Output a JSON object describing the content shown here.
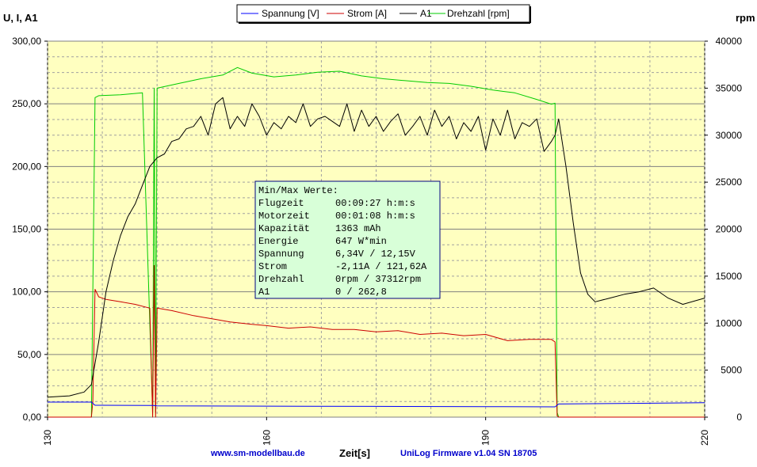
{
  "chart_data": {
    "type": "line",
    "y_left_label": "U, I, A1",
    "y_right_label": "rpm",
    "x_label": "Zeit[s]",
    "xlim": [
      130,
      220
    ],
    "ylim_left": [
      0,
      300
    ],
    "ylim_right": [
      0,
      40000
    ],
    "x_ticks": [
      "130",
      "160",
      "190",
      "220"
    ],
    "y_left_ticks": [
      "0,00",
      "50,00",
      "100,00",
      "150,00",
      "200,00",
      "250,00",
      "300,00"
    ],
    "y_right_ticks": [
      "0",
      "5000",
      "10000",
      "15000",
      "20000",
      "25000",
      "30000",
      "35000",
      "40000"
    ],
    "grid": true,
    "legend_position": "top",
    "series": [
      {
        "name": "Spannung [V]",
        "color": "#0000ff",
        "axis": "left",
        "x": [
          130,
          136,
          136.5,
          144.5,
          145,
          160,
          175,
          190,
          199.5,
          200,
          210,
          220
        ],
        "y": [
          12,
          12,
          9.5,
          9.3,
          9.0,
          8.8,
          8.6,
          8.4,
          8.2,
          10.5,
          11,
          11.5
        ]
      },
      {
        "name": "Strom [A]",
        "color": "#cc0000",
        "axis": "left",
        "x": [
          130,
          136,
          136.2,
          136.5,
          137,
          138,
          140,
          142,
          144,
          144.4,
          144.6,
          144.8,
          145,
          147,
          150,
          153,
          155,
          158,
          160,
          163,
          166,
          169,
          172,
          175,
          178,
          181,
          184,
          187,
          190,
          193,
          196,
          199,
          199.5,
          199.8,
          200,
          220
        ],
        "y": [
          0,
          0,
          12,
          102,
          96,
          94,
          92,
          90,
          87,
          0,
          121,
          0,
          87,
          85,
          81,
          78,
          76,
          74,
          73,
          71,
          72,
          70,
          70,
          68,
          69,
          66,
          67,
          65,
          66,
          61,
          62,
          62,
          60,
          1,
          0,
          0
        ]
      },
      {
        "name": "A1",
        "color": "#000000",
        "axis": "left",
        "x": [
          130,
          133,
          135,
          136,
          137,
          138,
          139,
          140,
          141,
          142,
          143,
          144,
          145,
          146,
          147,
          148,
          149,
          150,
          151,
          152,
          153,
          154,
          155,
          156,
          157,
          158,
          159,
          160,
          161,
          162,
          163,
          164,
          165,
          166,
          167,
          168,
          169,
          170,
          171,
          172,
          173,
          174,
          175,
          176,
          177,
          178,
          179,
          180,
          181,
          182,
          183,
          184,
          185,
          186,
          187,
          188,
          189,
          190,
          191,
          192,
          193,
          194,
          195,
          196,
          197,
          198,
          199,
          199.5,
          200,
          201,
          202,
          203,
          204,
          205,
          207,
          209,
          211,
          213,
          215,
          217,
          220
        ],
        "y": [
          16,
          17,
          20,
          26,
          60,
          100,
          125,
          145,
          160,
          170,
          185,
          200,
          207,
          210,
          220,
          222,
          230,
          232,
          240,
          225,
          250,
          255,
          230,
          240,
          232,
          250,
          240,
          225,
          235,
          230,
          240,
          235,
          250,
          232,
          238,
          240,
          236,
          232,
          250,
          228,
          245,
          232,
          240,
          228,
          236,
          242,
          225,
          232,
          240,
          225,
          245,
          232,
          240,
          222,
          235,
          228,
          240,
          213,
          238,
          225,
          245,
          222,
          235,
          232,
          238,
          212,
          220,
          225,
          238,
          200,
          155,
          115,
          98,
          92,
          95,
          98,
          100,
          103,
          95,
          90,
          95
        ]
      },
      {
        "name": "Drehzahl [rpm]",
        "color": "#00cc00",
        "axis": "right",
        "x": [
          130,
          136,
          136.5,
          137,
          140,
          143,
          144.4,
          144.6,
          144.8,
          145,
          148,
          151,
          154,
          156,
          158,
          161,
          164,
          167,
          170,
          173,
          176,
          179,
          182,
          185,
          188,
          191,
          194,
          197,
          199,
          199.5,
          199.8,
          200,
          220
        ],
        "y": [
          0,
          0,
          34000,
          34200,
          34300,
          34500,
          500,
          35000,
          500,
          35000,
          35500,
          36000,
          36400,
          37200,
          36600,
          36200,
          36400,
          36700,
          36800,
          36300,
          36000,
          35800,
          35600,
          35500,
          35200,
          34800,
          34500,
          33800,
          33300,
          33400,
          500,
          0,
          0
        ]
      }
    ],
    "annotations": {
      "min_max_box": [
        {
          "label": "Min/Max Werte:",
          "value": ""
        },
        {
          "label": "Flugzeit",
          "value": "00:09:27 h:m:s"
        },
        {
          "label": "Motorzeit",
          "value": "00:01:08 h:m:s"
        },
        {
          "label": "Kapazität",
          "value": "1363 mAh"
        },
        {
          "label": "Energie",
          "value": "647 W*min"
        },
        {
          "label": "Spannung",
          "value": "6,34V / 12,15V"
        },
        {
          "label": "Strom",
          "value": "-2,11A / 121,62A"
        },
        {
          "label": "Drehzahl",
          "value": "0rpm / 37312rpm"
        },
        {
          "label": "A1",
          "value": "0 / 262,8"
        }
      ],
      "footer_left": "www.sm-modellbau.de",
      "footer_right": "UniLog Firmware v1.04 SN 18705"
    },
    "colors": {
      "plot_background": "#ffffc0",
      "info_box_background": "#d8ffd8",
      "info_box_border": "#000080"
    }
  }
}
